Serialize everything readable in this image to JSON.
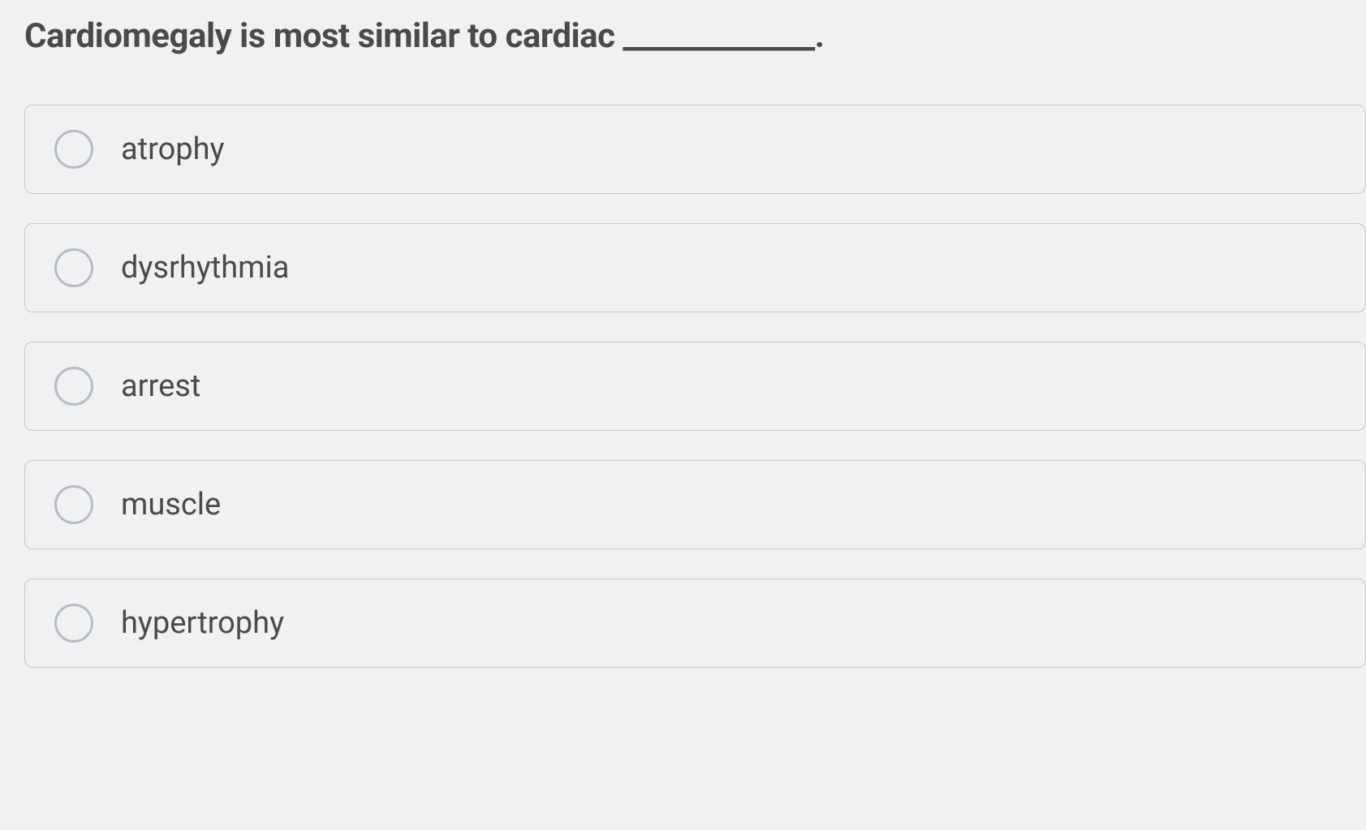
{
  "question": {
    "text": "Cardiomegaly is most similar to cardiac _____________."
  },
  "options": [
    {
      "label": "atrophy"
    },
    {
      "label": "dysrhythmia"
    },
    {
      "label": "arrest"
    },
    {
      "label": "muscle"
    },
    {
      "label": "hypertrophy"
    }
  ],
  "colors": {
    "background": "#f0f1f2",
    "text": "#4a4a4a",
    "border": "#c5c8cc",
    "radio_border": "#b8bcc2"
  }
}
